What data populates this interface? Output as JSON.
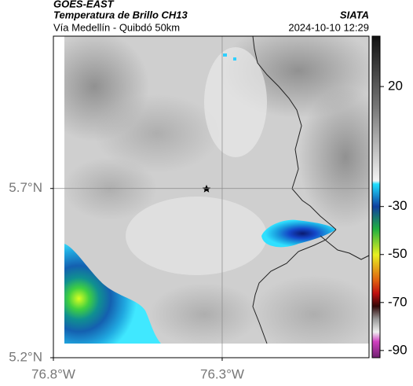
{
  "header": {
    "source": "GOES-EAST",
    "product": "Temperatura de Brillo CH13",
    "brand": "SIATA",
    "region": "Vía Medellín - Quibdó 50km",
    "timestamp": "2024-10-10 12:29"
  },
  "map": {
    "xlim": [
      -76.8,
      -75.865
    ],
    "ylim": [
      5.2,
      6.15
    ],
    "xticks": [
      {
        "value": -76.8,
        "label": "76.8°W"
      },
      {
        "value": -76.3,
        "label": "76.3°W"
      }
    ],
    "yticks": [
      {
        "value": 5.2,
        "label": "5.2°N"
      },
      {
        "value": 5.7,
        "label": "5.7°N"
      }
    ],
    "grid": true
  },
  "colorbar": {
    "lim": [
      41,
      -93
    ],
    "ticks": [
      20,
      -30,
      -50,
      -70,
      -90
    ]
  }
}
